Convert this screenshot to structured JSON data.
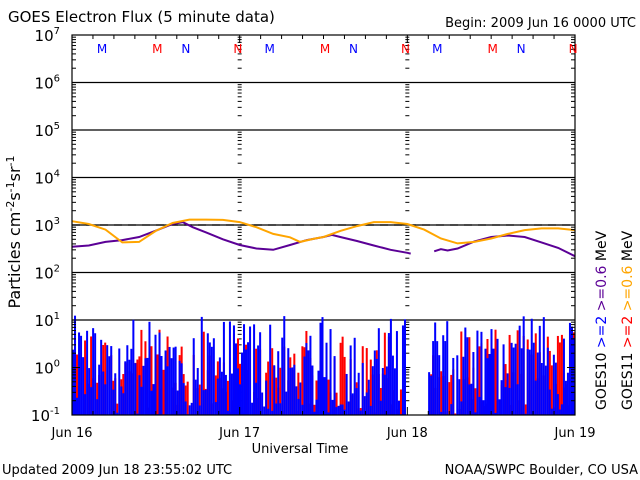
{
  "chart_data": {
    "type": "line",
    "title": "GOES Electron Flux (5 minute data)",
    "begin_label": "Begin: 2009 Jun 16 0000 UTC",
    "ylabel": "Particles cm-2s-1sr-1",
    "xlabel": "Universal Time",
    "y_scale": "log",
    "ylim": [
      0.1,
      10000000
    ],
    "y_ticks": [
      {
        "base": "10",
        "exp": "7"
      },
      {
        "base": "10",
        "exp": "6"
      },
      {
        "base": "10",
        "exp": "5"
      },
      {
        "base": "10",
        "exp": "4"
      },
      {
        "base": "10",
        "exp": "3"
      },
      {
        "base": "10",
        "exp": "2"
      },
      {
        "base": "10",
        "exp": "1"
      },
      {
        "base": "10",
        "exp": "0"
      },
      {
        "base": "10",
        "exp": "-1"
      }
    ],
    "x_ticks": [
      "Jun 16",
      "Jun 17",
      "Jun 18",
      "Jun 19"
    ],
    "xlim_days": [
      0,
      3
    ],
    "threshold_line": 1000,
    "gridlines_log": [
      1,
      2,
      3,
      4,
      5,
      6
    ],
    "day_markers": [
      1,
      2
    ],
    "local_time_markers": [
      {
        "label": "M",
        "satellite": "GOES10",
        "day": 0.19
      },
      {
        "label": "M",
        "satellite": "GOES11",
        "day": 0.52
      },
      {
        "label": "N",
        "satellite": "GOES10",
        "day": 0.69
      },
      {
        "label": "N",
        "satellite": "GOES11",
        "day": 1.0
      },
      {
        "label": "M",
        "satellite": "GOES10",
        "day": 1.19
      },
      {
        "label": "M",
        "satellite": "GOES11",
        "day": 1.52
      },
      {
        "label": "N",
        "satellite": "GOES10",
        "day": 1.69
      },
      {
        "label": "N",
        "satellite": "GOES11",
        "day": 2.0
      },
      {
        "label": "M",
        "satellite": "GOES10",
        "day": 2.19
      },
      {
        "label": "M",
        "satellite": "GOES11",
        "day": 2.52
      },
      {
        "label": "N",
        "satellite": "GOES10",
        "day": 2.69
      },
      {
        "label": "N",
        "satellite": "GOES11",
        "day": 3.0
      }
    ],
    "legend": {
      "placement": "right",
      "groups": [
        {
          "satellite": "GOES10",
          "entries": [
            {
              "label": ">=2",
              "color": "#0000ff"
            },
            {
              "label": ">=0.6",
              "color": "#5b0096"
            },
            {
              "label": "MeV",
              "color": "#000000"
            }
          ]
        },
        {
          "satellite": "GOES11",
          "entries": [
            {
              "label": ">=2",
              "color": "#ff0000"
            },
            {
              "label": ">=0.6",
              "color": "#ffa500"
            },
            {
              "label": "MeV",
              "color": "#000000"
            }
          ]
        }
      ]
    },
    "series": [
      {
        "name": "GOES10 >=0.6 MeV",
        "color": "#5b0096",
        "kind": "line",
        "x": [
          0.0,
          0.1,
          0.2,
          0.3,
          0.4,
          0.5,
          0.6,
          0.66,
          0.72,
          0.8,
          0.9,
          1.0,
          1.1,
          1.2,
          1.3,
          1.4,
          1.5,
          1.55,
          1.6,
          1.7,
          1.8,
          1.9,
          2.0,
          2.02,
          2.12,
          2.16,
          2.2,
          2.24,
          2.3,
          2.4,
          2.5,
          2.6,
          2.7,
          2.8,
          2.9,
          3.0
        ],
        "y": [
          350,
          370,
          440,
          480,
          560,
          760,
          1050,
          1150,
          900,
          700,
          500,
          380,
          320,
          300,
          380,
          480,
          560,
          620,
          560,
          460,
          370,
          300,
          260,
          250,
          null,
          280,
          310,
          290,
          320,
          450,
          560,
          600,
          560,
          430,
          330,
          220
        ]
      },
      {
        "name": "GOES11 >=0.6 MeV",
        "color": "#ffa500",
        "kind": "line",
        "x": [
          0.0,
          0.1,
          0.2,
          0.3,
          0.4,
          0.5,
          0.6,
          0.7,
          0.8,
          0.9,
          1.0,
          1.1,
          1.2,
          1.3,
          1.36,
          1.45,
          1.5,
          1.6,
          1.7,
          1.8,
          1.9,
          2.0,
          2.1,
          2.2,
          2.3,
          2.4,
          2.5,
          2.6,
          2.7,
          2.8,
          2.9,
          3.0
        ],
        "y": [
          1200,
          1050,
          800,
          430,
          440,
          750,
          1100,
          1300,
          1300,
          1280,
          1150,
          900,
          650,
          550,
          440,
          520,
          560,
          750,
          950,
          1150,
          1150,
          1050,
          800,
          520,
          410,
          440,
          520,
          650,
          780,
          850,
          850,
          780
        ]
      },
      {
        "name": "GOES10 >=2 MeV",
        "color": "#0000ff",
        "kind": "spiky",
        "typical_range": [
          0.1,
          10
        ]
      },
      {
        "name": "GOES11 >=2 MeV",
        "color": "#ff0000",
        "kind": "spiky",
        "typical_range": [
          0.1,
          5
        ]
      }
    ]
  },
  "footer": {
    "updated": "Updated 2009 Jun 18 23:55:02 UTC",
    "credit": "NOAA/SWPC Boulder, CO USA"
  }
}
